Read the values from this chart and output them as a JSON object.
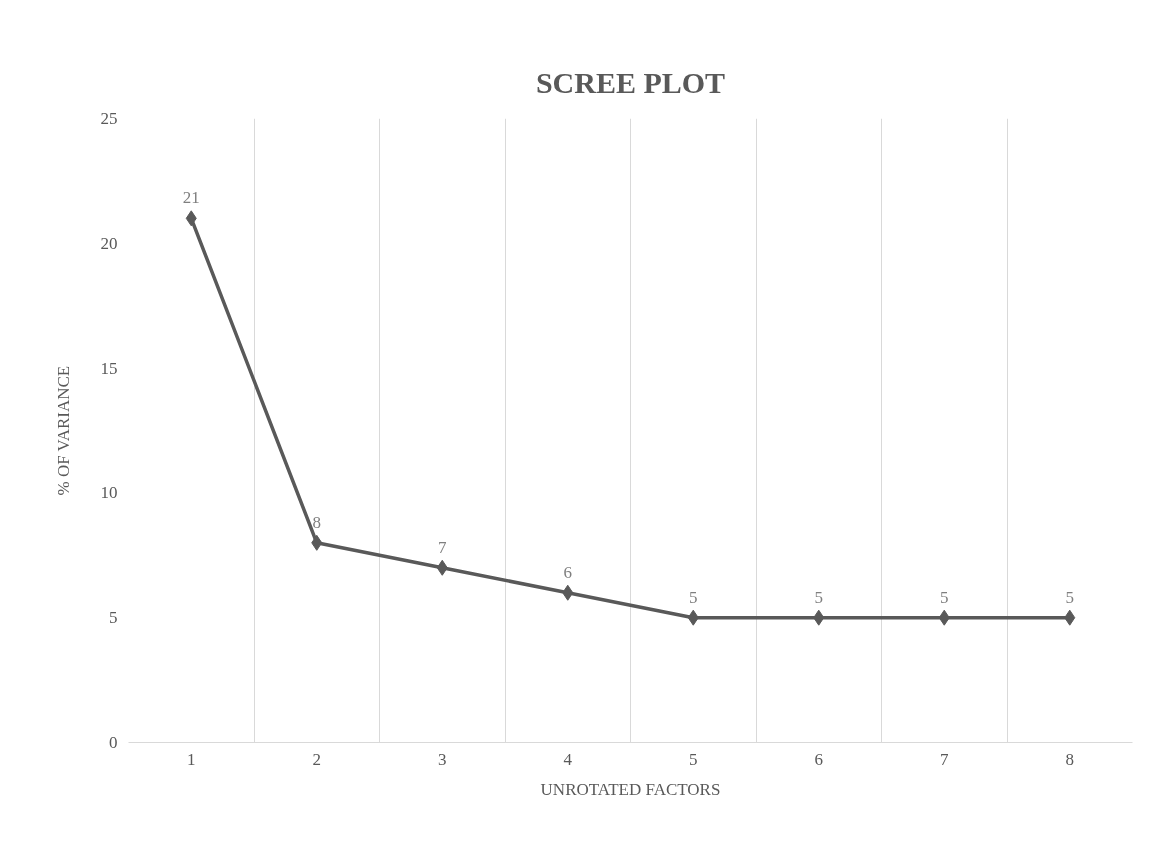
{
  "chart_data": {
    "type": "line",
    "title": "SCREE PLOT",
    "xlabel": "UNROTATED FACTORS",
    "ylabel": "% OF VARIANCE",
    "categories": [
      "1",
      "2",
      "3",
      "4",
      "5",
      "6",
      "7",
      "8"
    ],
    "series": [
      {
        "color": "#595959",
        "values": [
          21,
          8,
          7,
          6,
          5,
          5,
          5,
          5
        ]
      }
    ],
    "ylim": [
      0,
      25
    ],
    "yticks": [
      0,
      5,
      10,
      15,
      20,
      25
    ],
    "grid": "x",
    "marker": "diamond",
    "line_style": "solid",
    "data_labels": true
  }
}
